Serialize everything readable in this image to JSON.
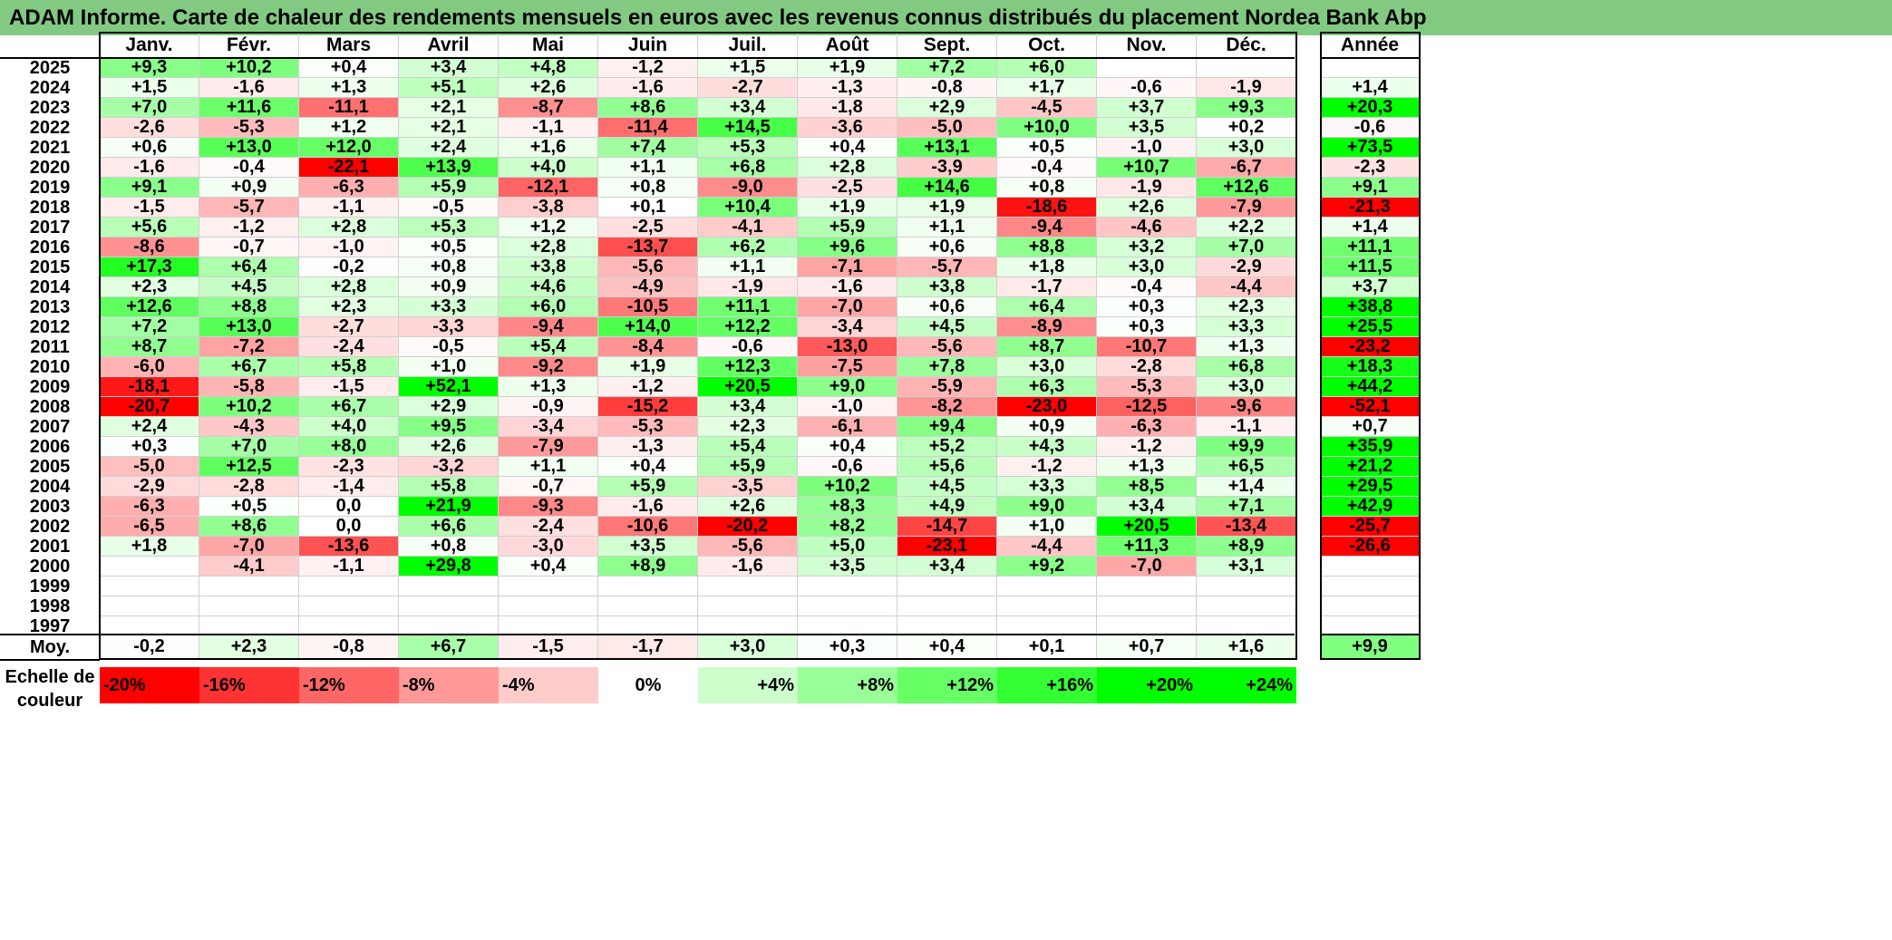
{
  "title": "ADAM Informe. Carte de chaleur des rendements mensuels en euros avec les revenus connus distribués du placement Nordea Bank Abp",
  "chart_data": {
    "type": "heatmap",
    "columns": [
      "Janv.",
      "Févr.",
      "Mars",
      "Avril",
      "Mai",
      "Juin",
      "Juil.",
      "Août",
      "Sept.",
      "Oct.",
      "Nov.",
      "Déc."
    ],
    "year_header": "Année",
    "average_label": "Moy.",
    "rows": [
      {
        "year": "2025",
        "months": [
          "+9,3",
          "+10,2",
          "+0,4",
          "+3,4",
          "+4,8",
          "-1,2",
          "+1,5",
          "+1,9",
          "+7,2",
          "+6,0",
          "",
          ""
        ],
        "annual": ""
      },
      {
        "year": "2024",
        "months": [
          "+1,5",
          "-1,6",
          "+1,3",
          "+5,1",
          "+2,6",
          "-1,6",
          "-2,7",
          "-1,3",
          "-0,8",
          "+1,7",
          "-0,6",
          "-1,9"
        ],
        "annual": "+1,4"
      },
      {
        "year": "2023",
        "months": [
          "+7,0",
          "+11,6",
          "-11,1",
          "+2,1",
          "-8,7",
          "+8,6",
          "+3,4",
          "-1,8",
          "+2,9",
          "-4,5",
          "+3,7",
          "+9,3"
        ],
        "annual": "+20,3"
      },
      {
        "year": "2022",
        "months": [
          "-2,6",
          "-5,3",
          "+1,2",
          "+2,1",
          "-1,1",
          "-11,4",
          "+14,5",
          "-3,6",
          "-5,0",
          "+10,0",
          "+3,5",
          "+0,2"
        ],
        "annual": "-0,6"
      },
      {
        "year": "2021",
        "months": [
          "+0,6",
          "+13,0",
          "+12,0",
          "+2,4",
          "+1,6",
          "+7,4",
          "+5,3",
          "+0,4",
          "+13,1",
          "+0,5",
          "-1,0",
          "+3,0"
        ],
        "annual": "+73,5"
      },
      {
        "year": "2020",
        "months": [
          "-1,6",
          "-0,4",
          "-22,1",
          "+13,9",
          "+4,0",
          "+1,1",
          "+6,8",
          "+2,8",
          "-3,9",
          "-0,4",
          "+10,7",
          "-6,7"
        ],
        "annual": "-2,3"
      },
      {
        "year": "2019",
        "months": [
          "+9,1",
          "+0,9",
          "-6,3",
          "+5,9",
          "-12,1",
          "+0,8",
          "-9,0",
          "-2,5",
          "+14,6",
          "+0,8",
          "-1,9",
          "+12,6"
        ],
        "annual": "+9,1"
      },
      {
        "year": "2018",
        "months": [
          "-1,5",
          "-5,7",
          "-1,1",
          "-0,5",
          "-3,8",
          "+0,1",
          "+10,4",
          "+1,9",
          "+1,9",
          "-18,6",
          "+2,6",
          "-7,9"
        ],
        "annual": "-21,3"
      },
      {
        "year": "2017",
        "months": [
          "+5,6",
          "-1,2",
          "+2,8",
          "+5,3",
          "+1,2",
          "-2,5",
          "-4,1",
          "+5,9",
          "+1,1",
          "-9,4",
          "-4,6",
          "+2,2"
        ],
        "annual": "+1,4"
      },
      {
        "year": "2016",
        "months": [
          "-8,6",
          "-0,7",
          "-1,0",
          "+0,5",
          "+2,8",
          "-13,7",
          "+6,2",
          "+9,6",
          "+0,6",
          "+8,8",
          "+3,2",
          "+7,0"
        ],
        "annual": "+11,1"
      },
      {
        "year": "2015",
        "months": [
          "+17,3",
          "+6,4",
          "-0,2",
          "+0,8",
          "+3,8",
          "-5,6",
          "+1,1",
          "-7,1",
          "-5,7",
          "+1,8",
          "+3,0",
          "-2,9"
        ],
        "annual": "+11,5"
      },
      {
        "year": "2014",
        "months": [
          "+2,3",
          "+4,5",
          "+2,8",
          "+0,9",
          "+4,6",
          "-4,9",
          "-1,9",
          "-1,6",
          "+3,8",
          "-1,7",
          "-0,4",
          "-4,4"
        ],
        "annual": "+3,7"
      },
      {
        "year": "2013",
        "months": [
          "+12,6",
          "+8,8",
          "+2,3",
          "+3,3",
          "+6,0",
          "-10,5",
          "+11,1",
          "-7,0",
          "+0,6",
          "+6,4",
          "+0,3",
          "+2,3"
        ],
        "annual": "+38,8"
      },
      {
        "year": "2012",
        "months": [
          "+7,2",
          "+13,0",
          "-2,7",
          "-3,3",
          "-9,4",
          "+14,0",
          "+12,2",
          "-3,4",
          "+4,5",
          "-8,9",
          "+0,3",
          "+3,3"
        ],
        "annual": "+25,5"
      },
      {
        "year": "2011",
        "months": [
          "+8,7",
          "-7,2",
          "-2,4",
          "-0,5",
          "+5,4",
          "-8,4",
          "-0,6",
          "-13,0",
          "-5,6",
          "+8,7",
          "-10,7",
          "+1,3"
        ],
        "annual": "-23,2"
      },
      {
        "year": "2010",
        "months": [
          "-6,0",
          "+6,7",
          "+5,8",
          "+1,0",
          "-9,2",
          "+1,9",
          "+12,3",
          "-7,5",
          "+7,8",
          "+3,0",
          "-2,8",
          "+6,8"
        ],
        "annual": "+18,3"
      },
      {
        "year": "2009",
        "months": [
          "-18,1",
          "-5,8",
          "-1,5",
          "+52,1",
          "+1,3",
          "-1,2",
          "+20,5",
          "+9,0",
          "-5,9",
          "+6,3",
          "-5,3",
          "+3,0"
        ],
        "annual": "+44,2"
      },
      {
        "year": "2008",
        "months": [
          "-20,7",
          "+10,2",
          "+6,7",
          "+2,9",
          "-0,9",
          "-15,2",
          "+3,4",
          "-1,0",
          "-8,2",
          "-23,0",
          "-12,5",
          "-9,6"
        ],
        "annual": "-52,1"
      },
      {
        "year": "2007",
        "months": [
          "+2,4",
          "-4,3",
          "+4,0",
          "+9,5",
          "-3,4",
          "-5,3",
          "+2,3",
          "-6,1",
          "+9,4",
          "+0,9",
          "-6,3",
          "-1,1"
        ],
        "annual": "+0,7"
      },
      {
        "year": "2006",
        "months": [
          "+0,3",
          "+7,0",
          "+8,0",
          "+2,6",
          "-7,9",
          "-1,3",
          "+5,4",
          "+0,4",
          "+5,2",
          "+4,3",
          "-1,2",
          "+9,9"
        ],
        "annual": "+35,9"
      },
      {
        "year": "2005",
        "months": [
          "-5,0",
          "+12,5",
          "-2,3",
          "-3,2",
          "+1,1",
          "+0,4",
          "+5,9",
          "-0,6",
          "+5,6",
          "-1,2",
          "+1,3",
          "+6,5"
        ],
        "annual": "+21,2"
      },
      {
        "year": "2004",
        "months": [
          "-2,9",
          "-2,8",
          "-1,4",
          "+5,8",
          "-0,7",
          "+5,9",
          "-3,5",
          "+10,2",
          "+4,5",
          "+3,3",
          "+8,5",
          "+1,4"
        ],
        "annual": "+29,5"
      },
      {
        "year": "2003",
        "months": [
          "-6,3",
          "+0,5",
          "0,0",
          "+21,9",
          "-9,3",
          "-1,6",
          "+2,6",
          "+8,3",
          "+4,9",
          "+9,0",
          "+3,4",
          "+7,1"
        ],
        "annual": "+42,9"
      },
      {
        "year": "2002",
        "months": [
          "-6,5",
          "+8,6",
          "0,0",
          "+6,6",
          "-2,4",
          "-10,6",
          "-20,2",
          "+8,2",
          "-14,7",
          "+1,0",
          "+20,5",
          "-13,4"
        ],
        "annual": "-25,7"
      },
      {
        "year": "2001",
        "months": [
          "+1,8",
          "-7,0",
          "-13,6",
          "+0,8",
          "-3,0",
          "+3,5",
          "-5,6",
          "+5,0",
          "-23,1",
          "-4,4",
          "+11,3",
          "+8,9"
        ],
        "annual": "-26,6"
      },
      {
        "year": "2000",
        "months": [
          "",
          "-4,1",
          "-1,1",
          "+29,8",
          "+0,4",
          "+8,9",
          "-1,6",
          "+3,5",
          "+3,4",
          "+9,2",
          "-7,0",
          "+3,1"
        ],
        "annual": ""
      },
      {
        "year": "1999",
        "months": [
          "",
          "",
          "",
          "",
          "",
          "",
          "",
          "",
          "",
          "",
          "",
          ""
        ],
        "annual": ""
      },
      {
        "year": "1998",
        "months": [
          "",
          "",
          "",
          "",
          "",
          "",
          "",
          "",
          "",
          "",
          "",
          ""
        ],
        "annual": ""
      },
      {
        "year": "1997",
        "months": [
          "",
          "",
          "",
          "",
          "",
          "",
          "",
          "",
          "",
          "",
          "",
          ""
        ],
        "annual": ""
      }
    ],
    "average": {
      "months": [
        "-0,2",
        "+2,3",
        "-0,8",
        "+6,7",
        "-1,5",
        "-1,7",
        "+3,0",
        "+0,3",
        "+0,4",
        "+0,1",
        "+0,7",
        "+1,6"
      ],
      "annual": "+9,9"
    },
    "scale": {
      "caption": [
        "Echelle de",
        "couleur"
      ],
      "steps": [
        {
          "label": "-20%",
          "value": -20,
          "color": "#ff0000"
        },
        {
          "label": "-16%",
          "value": -16,
          "color": "#ff3333"
        },
        {
          "label": "-12%",
          "value": -12,
          "color": "#ff6666"
        },
        {
          "label": "-8%",
          "value": -8,
          "color": "#ff9999"
        },
        {
          "label": "-4%",
          "value": -4,
          "color": "#ffcccc"
        },
        {
          "label": "0%",
          "value": 0,
          "color": "#ffffff"
        },
        {
          "label": "+4%",
          "value": 4,
          "color": "#ccffcc"
        },
        {
          "label": "+8%",
          "value": 8,
          "color": "#99ff99"
        },
        {
          "label": "+12%",
          "value": 12,
          "color": "#66ff66"
        },
        {
          "label": "+16%",
          "value": 16,
          "color": "#33ff33"
        },
        {
          "label": "+20%",
          "value": 20,
          "color": "#00ff00"
        },
        {
          "label": "+24%",
          "value": 24,
          "color": "#00ff00"
        }
      ]
    }
  }
}
